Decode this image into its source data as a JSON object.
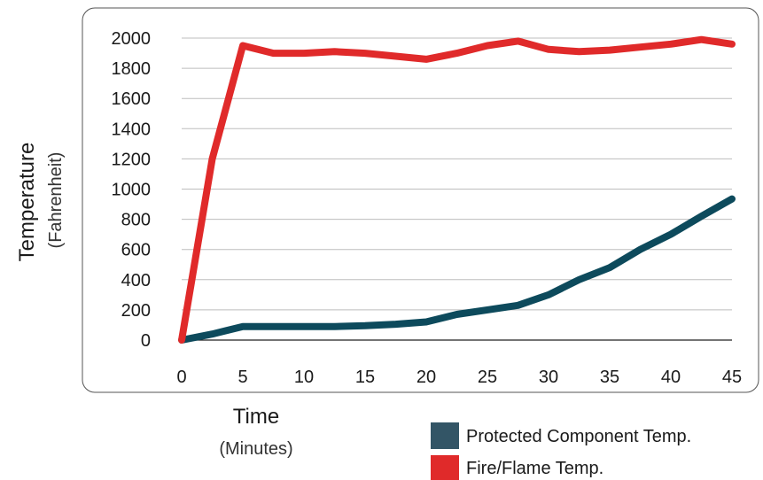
{
  "chart_data": {
    "type": "line",
    "xlabel": "Time",
    "xlabel_sub": "(Minutes)",
    "ylabel": "Temperature",
    "ylabel_sub": "(Fahrenheit)",
    "xlim": [
      0,
      45
    ],
    "ylim": [
      0,
      2000
    ],
    "x_ticks": [
      "0",
      "5",
      "10",
      "15",
      "20",
      "25",
      "30",
      "35",
      "40",
      "45"
    ],
    "y_ticks": [
      "0",
      "200",
      "400",
      "600",
      "800",
      "1000",
      "1200",
      "1400",
      "1600",
      "1800",
      "2000"
    ],
    "grid": true,
    "legend_position": "bottom-right",
    "x": [
      0,
      2.5,
      5,
      7.5,
      10,
      12.5,
      15,
      17.5,
      20,
      22.5,
      25,
      27.5,
      30,
      32.5,
      35,
      37.5,
      40,
      42.5,
      45
    ],
    "series": [
      {
        "name": "Protected Component Temp.",
        "color": "#0d4a5c",
        "values": [
          0,
          40,
          90,
          90,
          90,
          90,
          95,
          105,
          120,
          170,
          200,
          230,
          300,
          400,
          480,
          600,
          700,
          820,
          935
        ]
      },
      {
        "name": "Fire/Flame Temp.",
        "color": "#e02a2a",
        "values": [
          0,
          1200,
          1950,
          1900,
          1900,
          1910,
          1900,
          1880,
          1860,
          1900,
          1950,
          1980,
          1925,
          1910,
          1920,
          1940,
          1960,
          1990,
          1960
        ]
      }
    ],
    "legend_swatch_colors": [
      "#335566",
      "#e02a2a"
    ]
  }
}
